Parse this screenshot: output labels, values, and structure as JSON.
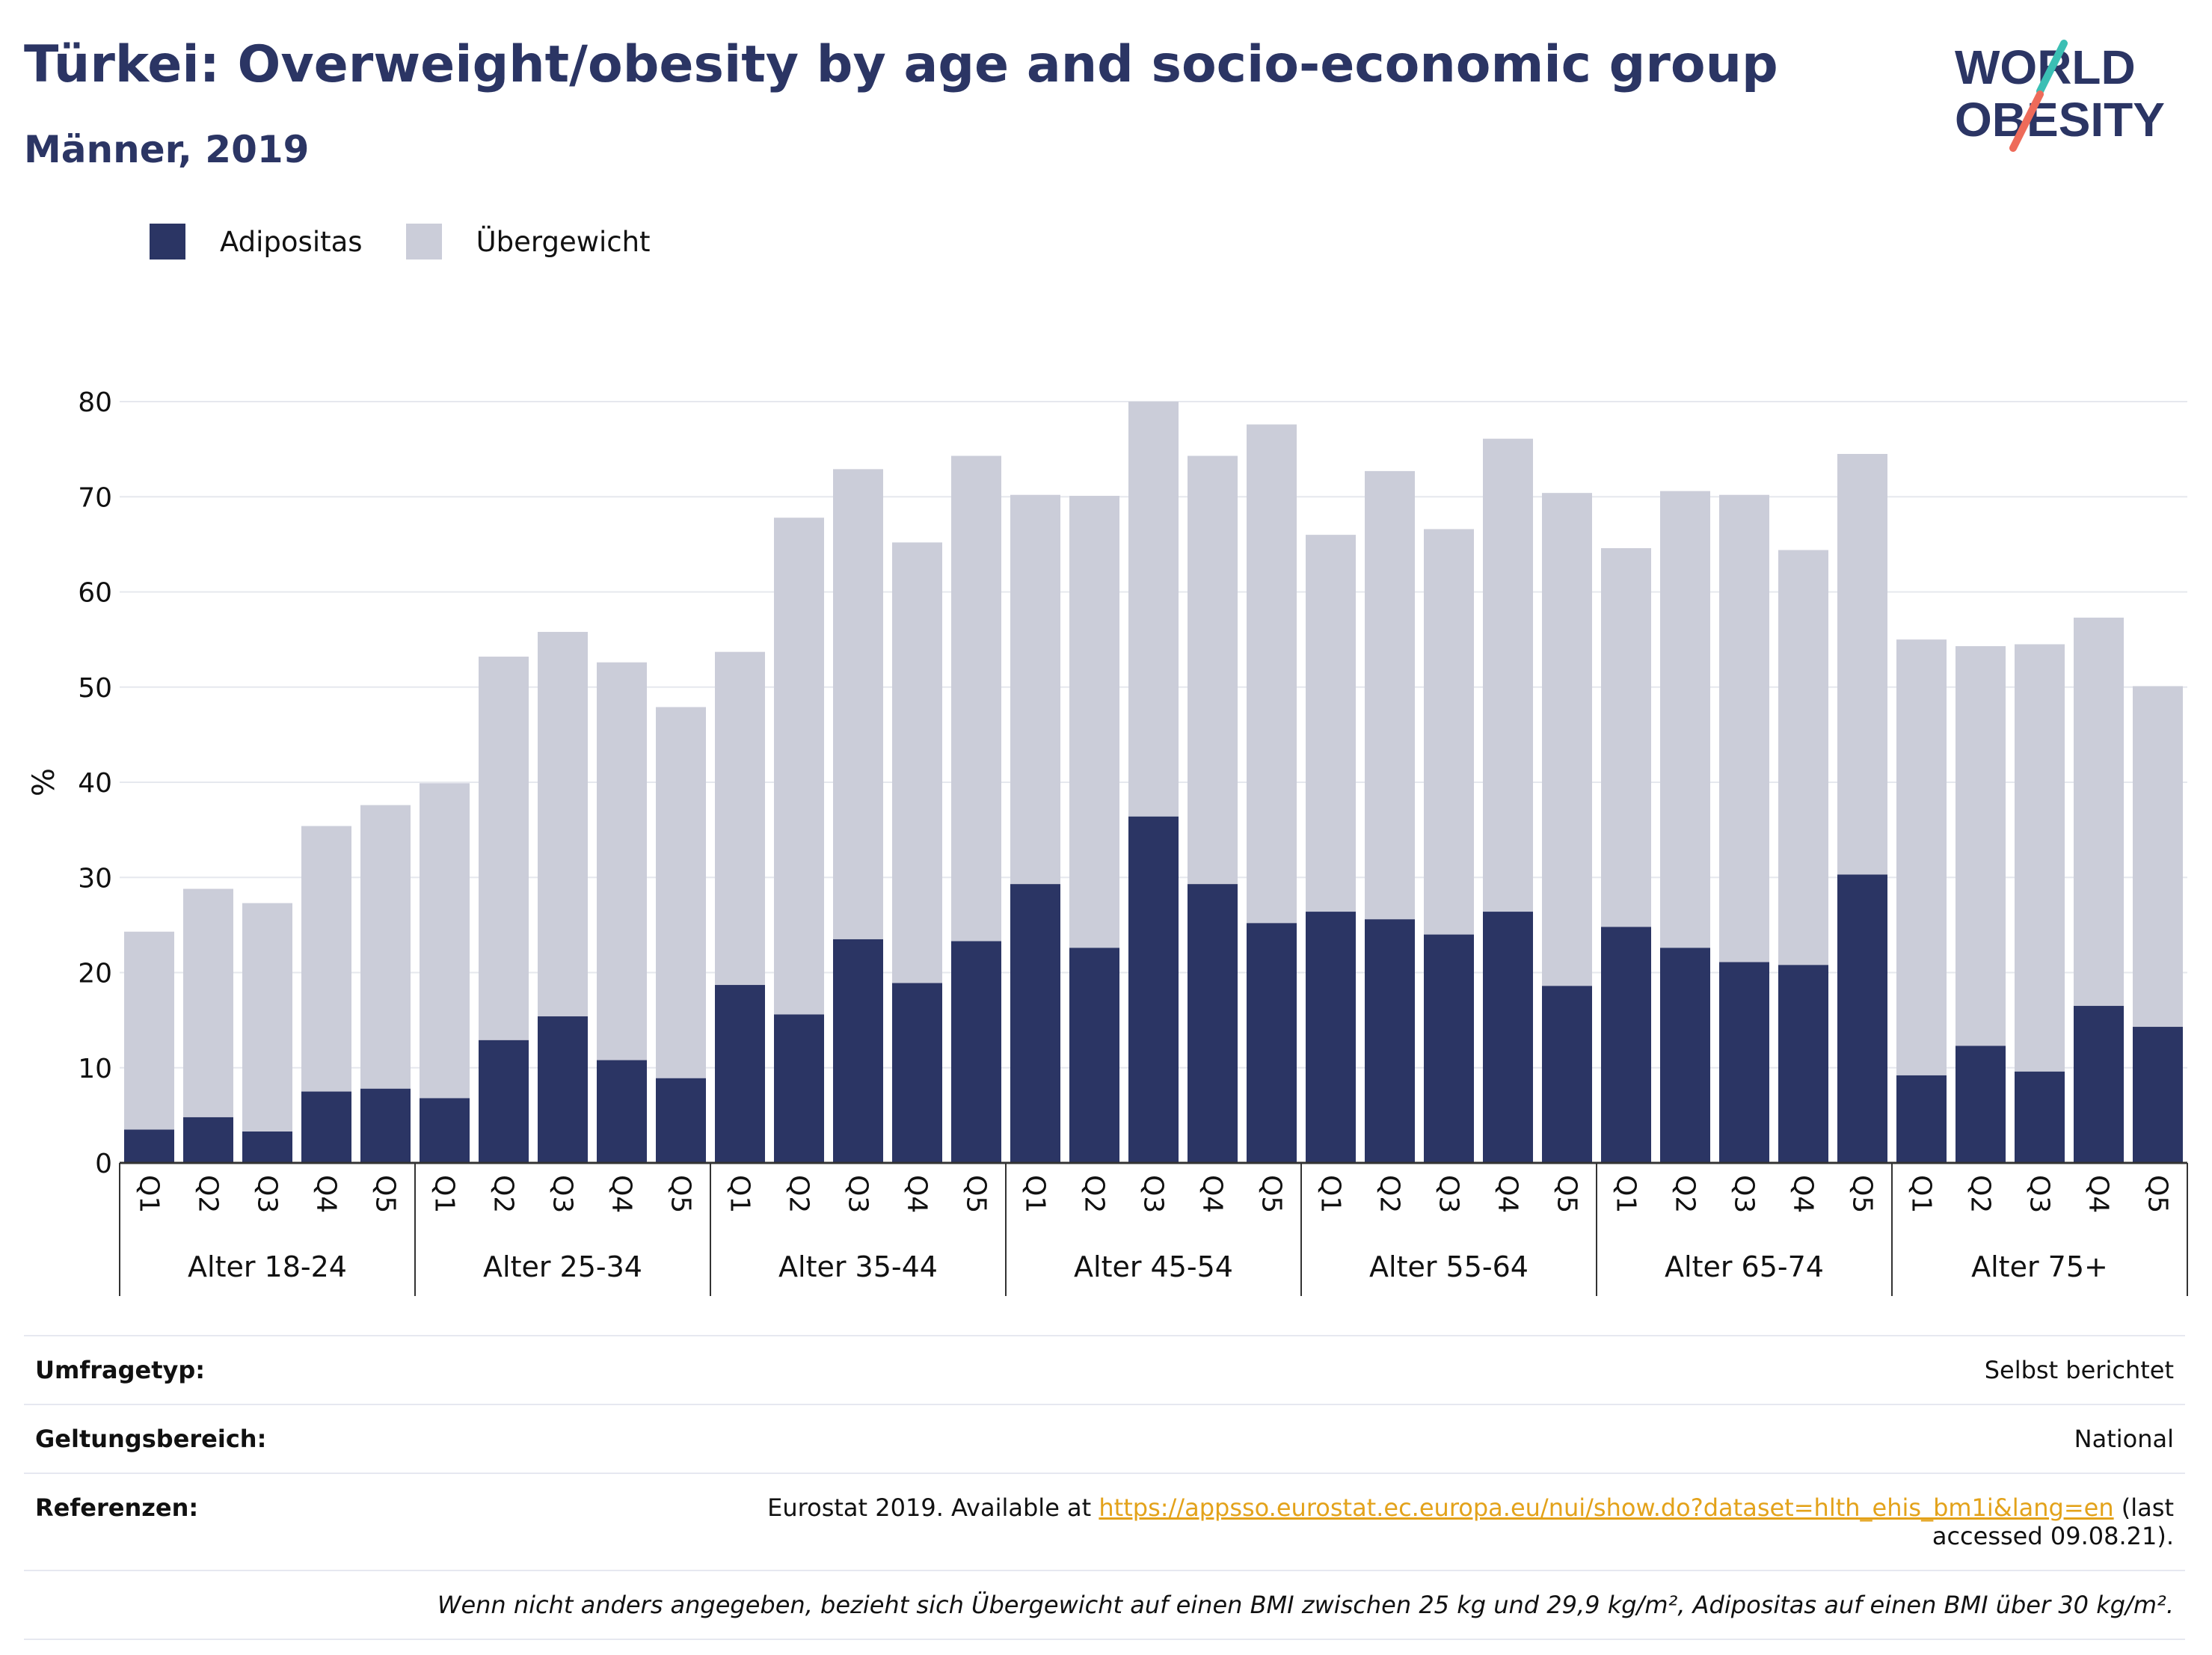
{
  "header": {
    "title": "Türkei: Overweight/obesity by age and socio-economic group",
    "subtitle": "Männer, 2019"
  },
  "logo": {
    "line1": "WORLD",
    "line2": "OBESITY"
  },
  "colors": {
    "obesity": "#2b3564",
    "overweight": "#cbcdd9",
    "title": "#2b3564",
    "link": "#e3a21a"
  },
  "legend": [
    {
      "label": "Adipositas",
      "color": "#2b3564"
    },
    {
      "label": "Übergewicht",
      "color": "#cbcdd9"
    }
  ],
  "chart_data": {
    "type": "bar",
    "stacked": true,
    "ylabel": "%",
    "ylim": [
      0,
      80
    ],
    "yticks": [
      0,
      10,
      20,
      30,
      40,
      50,
      60,
      70,
      80
    ],
    "grid": true,
    "legend_position": "top-left",
    "groups": [
      {
        "label": "Alter 18-24",
        "categories": [
          "Q1",
          "Q2",
          "Q3",
          "Q4",
          "Q5"
        ],
        "adipositas": [
          3.5,
          4.8,
          3.3,
          7.5,
          7.8
        ],
        "total": [
          24.3,
          28.8,
          27.3,
          35.4,
          37.6
        ]
      },
      {
        "label": "Alter 25-34",
        "categories": [
          "Q1",
          "Q2",
          "Q3",
          "Q4",
          "Q5"
        ],
        "adipositas": [
          6.8,
          12.9,
          15.4,
          10.8,
          8.9
        ],
        "total": [
          39.9,
          53.2,
          55.8,
          52.6,
          47.9
        ]
      },
      {
        "label": "Alter 35-44",
        "categories": [
          "Q1",
          "Q2",
          "Q3",
          "Q4",
          "Q5"
        ],
        "adipositas": [
          18.7,
          15.6,
          23.5,
          18.9,
          23.3
        ],
        "total": [
          53.7,
          67.8,
          72.9,
          65.2,
          74.3
        ]
      },
      {
        "label": "Alter 45-54",
        "categories": [
          "Q1",
          "Q2",
          "Q3",
          "Q4",
          "Q5"
        ],
        "adipositas": [
          29.3,
          22.6,
          36.4,
          29.3,
          25.2
        ],
        "total": [
          70.2,
          70.1,
          80.0,
          74.3,
          77.6
        ]
      },
      {
        "label": "Alter 55-64",
        "categories": [
          "Q1",
          "Q2",
          "Q3",
          "Q4",
          "Q5"
        ],
        "adipositas": [
          26.4,
          25.6,
          24.0,
          26.4,
          18.6
        ],
        "total": [
          66.0,
          72.7,
          66.6,
          76.1,
          70.4
        ]
      },
      {
        "label": "Alter 65-74",
        "categories": [
          "Q1",
          "Q2",
          "Q3",
          "Q4",
          "Q5"
        ],
        "adipositas": [
          24.8,
          22.6,
          21.1,
          20.8,
          30.3
        ],
        "total": [
          64.6,
          70.6,
          70.2,
          64.4,
          74.5
        ]
      },
      {
        "label": "Alter 75+",
        "categories": [
          "Q1",
          "Q2",
          "Q3",
          "Q4",
          "Q5"
        ],
        "adipositas": [
          9.2,
          12.3,
          9.6,
          16.5,
          14.3
        ],
        "total": [
          55.0,
          54.3,
          54.5,
          57.3,
          50.1
        ]
      }
    ]
  },
  "info": {
    "survey_label": "Umfragetyp:",
    "survey_value": "Selbst berichtet",
    "scope_label": "Geltungsbereich:",
    "scope_value": "National",
    "ref_label": "Referenzen:",
    "ref_prefix": "Eurostat 2019. Available at ",
    "ref_link": "https://appsso.eurostat.ec.europa.eu/nui/show.do?dataset=hlth_ehis_bm1i&lang=en",
    "ref_suffix": " (last accessed 09.08.21).",
    "note": "Wenn nicht anders angegeben, bezieht sich Übergewicht auf einen BMI zwischen 25 kg und 29,9 kg/m², Adipositas auf einen BMI über 30 kg/m²."
  }
}
